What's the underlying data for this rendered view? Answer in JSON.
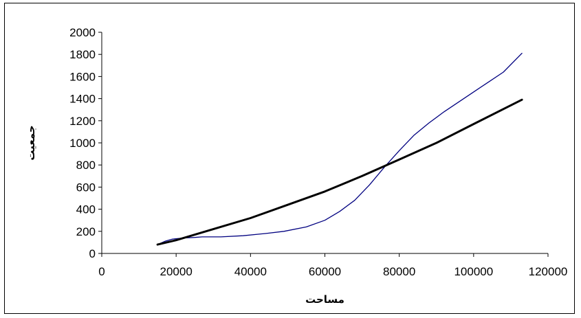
{
  "chart_data": {
    "type": "line",
    "title": "",
    "xlabel": "مساحت",
    "ylabel": "جمعیت",
    "xlim": [
      0,
      120000
    ],
    "ylim": [
      0,
      2000
    ],
    "x_ticks": [
      "0",
      "20000",
      "40000",
      "60000",
      "80000",
      "100000",
      "120000"
    ],
    "y_ticks": [
      "0",
      "200",
      "400",
      "600",
      "800",
      "1000",
      "1200",
      "1400",
      "1600",
      "1800",
      "2000"
    ],
    "grid": false,
    "legend": "none",
    "series": [
      {
        "style": "thin",
        "color": "#000080",
        "x": [
          15000,
          17000,
          19000,
          22000,
          25000,
          27000,
          32000,
          38000,
          44000,
          49000,
          55000,
          60000,
          64000,
          68000,
          72000,
          76000,
          80000,
          84000,
          88000,
          92000,
          96000,
          100000,
          104000,
          108000,
          113000
        ],
        "y": [
          80,
          110,
          130,
          140,
          145,
          150,
          150,
          160,
          180,
          200,
          240,
          300,
          380,
          480,
          620,
          780,
          930,
          1070,
          1180,
          1280,
          1370,
          1460,
          1550,
          1640,
          1810
        ]
      },
      {
        "style": "thick",
        "color": "#000000",
        "x": [
          15000,
          20000,
          30000,
          40000,
          50000,
          60000,
          70000,
          80000,
          90000,
          100000,
          113000
        ],
        "y": [
          80,
          120,
          220,
          320,
          440,
          560,
          700,
          850,
          1000,
          1170,
          1390
        ]
      }
    ]
  }
}
